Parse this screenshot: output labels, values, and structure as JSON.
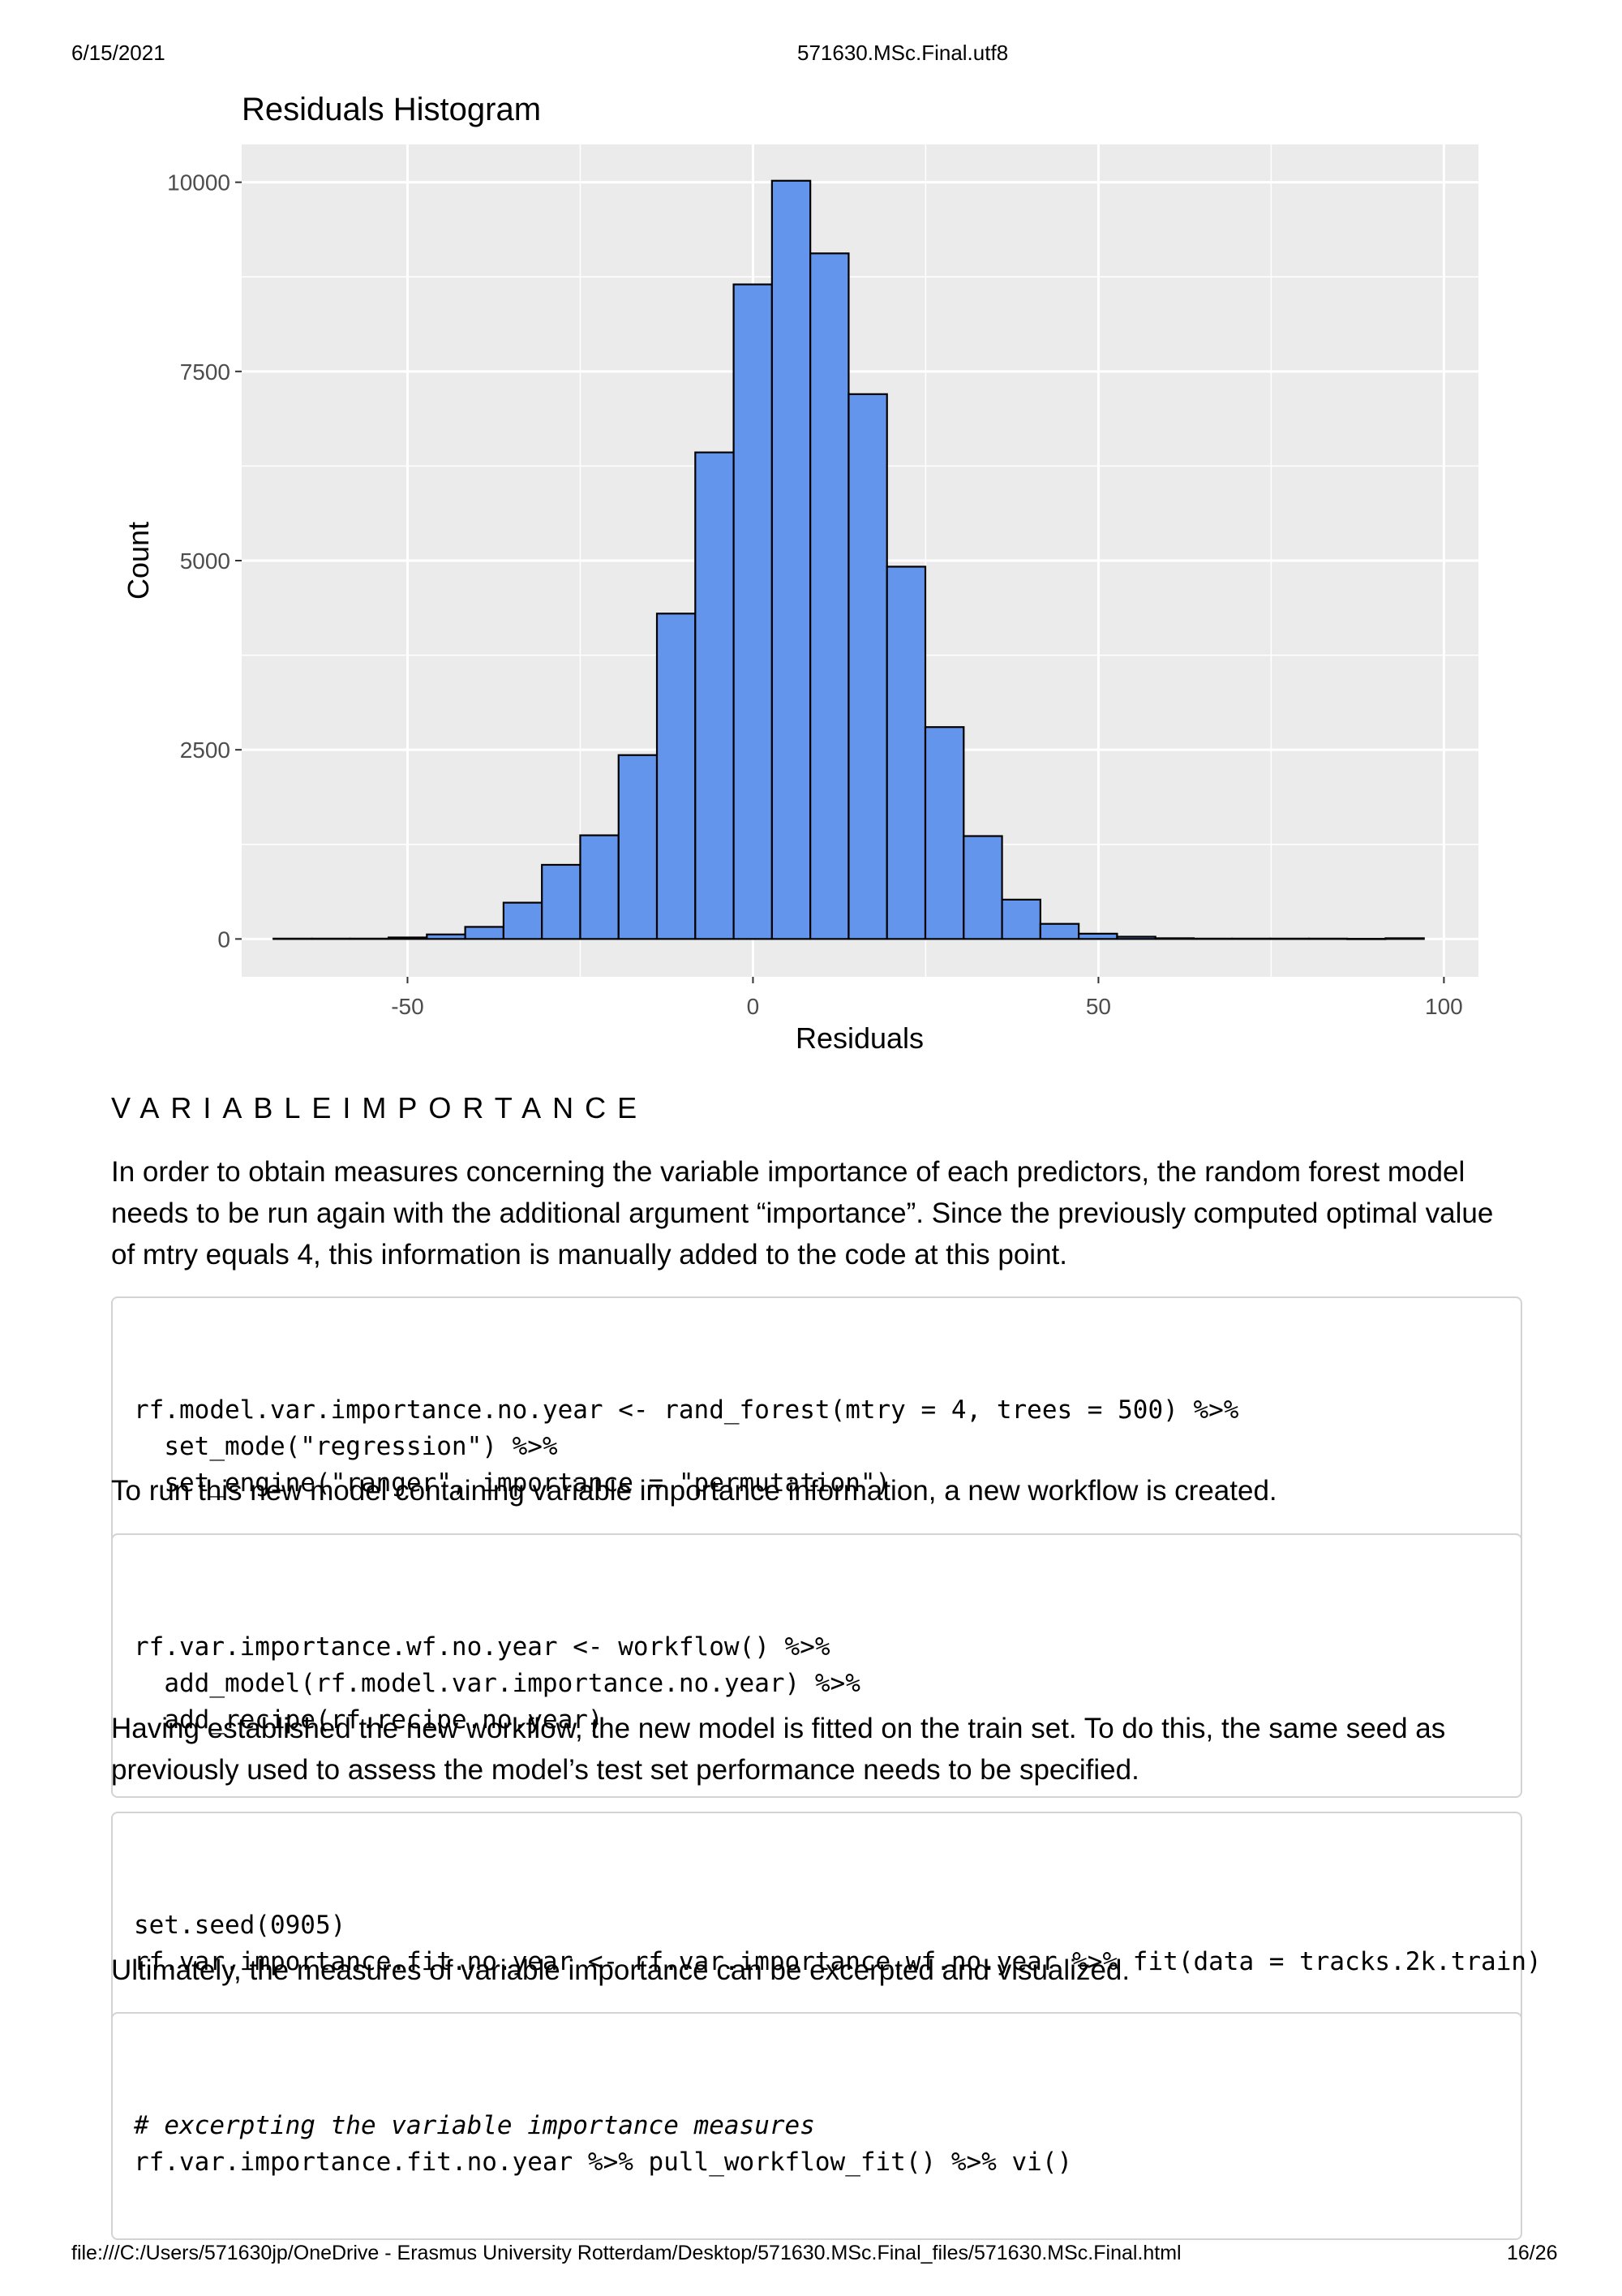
{
  "page_header": {
    "date": "6/15/2021",
    "title": "571630.MSc.Final.utf8"
  },
  "page_footer": {
    "path": "file:///C:/Users/571630jp/OneDrive - Erasmus University Rotterdam/Desktop/571630.MSc.Final_files/571630.MSc.Final.html",
    "page": "16/26"
  },
  "chart_data": {
    "type": "bar",
    "title": "Residuals Histogram",
    "xlabel": "Residuals",
    "ylabel": "Count",
    "xlim": [
      -74,
      105
    ],
    "ylim": [
      -500,
      10500
    ],
    "xticks": [
      -50,
      0,
      50,
      100
    ],
    "yticks": [
      0,
      2500,
      5000,
      7500,
      10000
    ],
    "x_tick_labels": [
      "-50",
      "0",
      "50",
      "100"
    ],
    "y_tick_labels": [
      "0",
      "2500",
      "5000",
      "7500",
      "10000"
    ],
    "bin_width": 5.55,
    "bin_start": -69.4,
    "counts": [
      5,
      5,
      5,
      20,
      60,
      160,
      480,
      980,
      1370,
      2430,
      4300,
      6430,
      8650,
      10020,
      9060,
      7200,
      4920,
      2800,
      1360,
      520,
      200,
      70,
      30,
      10,
      5,
      5,
      5,
      5,
      3,
      10
    ],
    "grid": true,
    "fill_color": "#6495ed",
    "edge_color": "#000000",
    "panel_color": "#ebebeb"
  },
  "section": {
    "heading": "VARIABLEIMPORTANCE",
    "para1": "In order to obtain measures concerning the variable importance of each predictors, the random forest model needs to be run again with the additional argument “importance”. Since the previously computed optimal value of mtry equals 4, this information is manually added to the code at this point.",
    "code1": [
      "rf.model.var.importance.no.year <- rand_forest(mtry = 4, trees = 500) %>%",
      "  set_mode(\"regression\") %>%",
      "  set_engine(\"ranger\", importance = \"permutation\")"
    ],
    "para2": "To run this new model containing variable importance information, a new workflow is created.",
    "code2": [
      "rf.var.importance.wf.no.year <- workflow() %>%",
      "  add_model(rf.model.var.importance.no.year) %>%",
      "  add_recipe(rf.recipe.no.year)"
    ],
    "para3": "Having established the new workflow, the new model is fitted on the train set. To do this, the same seed as previously used to assess the model’s test set performance needs to be specified.",
    "code3": [
      "set.seed(0905)",
      "rf.var.importance.fit.no.year <- rf.var.importance.wf.no.year %>% fit(data = tracks.2k.train)"
    ],
    "para4": "Ultimately, the measures of variable importance can be excerpted and visualized.",
    "code4_comment": "# excerpting the variable importance measures",
    "code4_line": "rf.var.importance.fit.no.year %>% pull_workflow_fit() %>% vi()"
  }
}
